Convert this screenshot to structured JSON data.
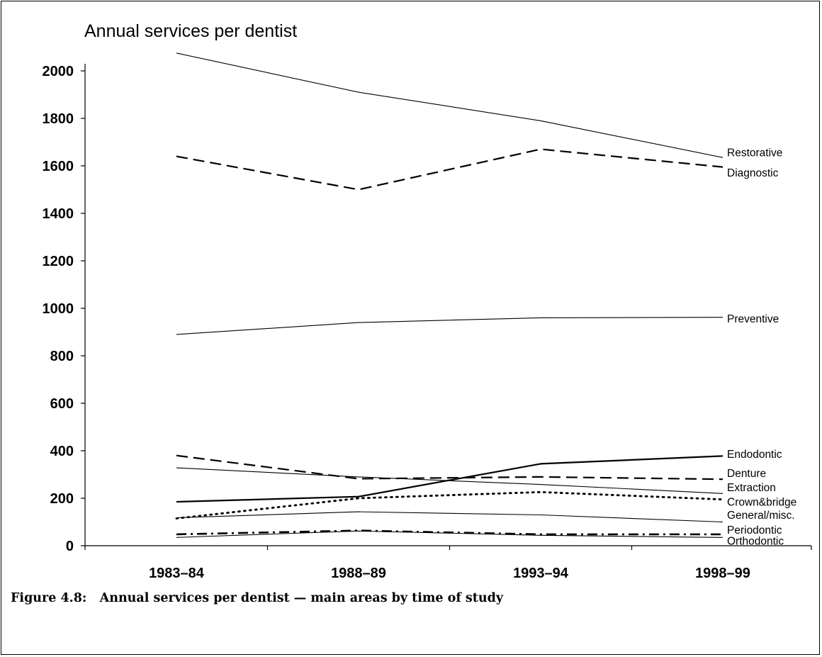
{
  "figure": {
    "caption": "Figure 4.8:   Annual services per dentist — main areas by time of study"
  },
  "chart_data": {
    "type": "line",
    "title": "Annual services per dentist",
    "xlabel": "",
    "ylabel": "",
    "categories": [
      "1983–84",
      "1988–89",
      "1993–94",
      "1998–99"
    ],
    "ylim": [
      0,
      2000
    ],
    "yticks": [
      0,
      200,
      400,
      600,
      800,
      1000,
      1200,
      1400,
      1600,
      1800,
      2000
    ],
    "grid": false,
    "legend": "direct labels at right end of lines",
    "series": [
      {
        "name": "Restorative",
        "values": [
          2075,
          1910,
          1790,
          1635
        ],
        "style": "thin-solid"
      },
      {
        "name": "Diagnostic",
        "values": [
          1640,
          1500,
          1670,
          1595
        ],
        "style": "long-dash"
      },
      {
        "name": "Preventive",
        "values": [
          890,
          940,
          960,
          962
        ],
        "style": "thin-solid"
      },
      {
        "name": "Endodontic",
        "values": [
          185,
          207,
          345,
          378
        ],
        "style": "thick-solid"
      },
      {
        "name": "Denture",
        "values": [
          380,
          282,
          290,
          280
        ],
        "style": "long-dash"
      },
      {
        "name": "Extraction",
        "values": [
          328,
          290,
          258,
          220
        ],
        "style": "thin-solid"
      },
      {
        "name": "Crown&bridge",
        "values": [
          115,
          200,
          226,
          195
        ],
        "style": "dotted"
      },
      {
        "name": "General/misc.",
        "values": [
          118,
          143,
          130,
          100
        ],
        "style": "thin-solid"
      },
      {
        "name": "Periodontic",
        "values": [
          48,
          64,
          48,
          48
        ],
        "style": "dash-dot"
      },
      {
        "name": "Orthodontic",
        "values": [
          35,
          62,
          44,
          35
        ],
        "style": "thin-solid"
      }
    ],
    "label_positions": {
      "Restorative": 1655,
      "Diagnostic": 1570,
      "Preventive": 955,
      "Endodontic": 385,
      "Denture": 305,
      "Extraction": 245,
      "Crown&bridge": 183,
      "General/misc.": 128,
      "Periodontic": 66,
      "Orthodontic": 20
    }
  }
}
